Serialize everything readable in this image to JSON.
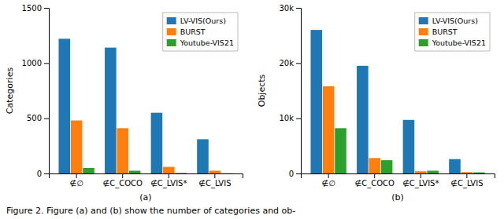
{
  "chart_data": [
    {
      "type": "bar",
      "xlabel": "(a)",
      "ylabel": "Categories",
      "categories": [
        "∉∅",
        "∉C_COCO",
        "∉C_LVIS*",
        "∉C_LVIS"
      ],
      "series": [
        {
          "name": "LV-VIS(Ours)",
          "values": [
            1220,
            1140,
            550,
            310
          ]
        },
        {
          "name": "BURST",
          "values": [
            480,
            410,
            60,
            25
          ]
        },
        {
          "name": "Youtube-VIS21",
          "values": [
            50,
            25,
            5,
            2
          ]
        }
      ],
      "ylim": [
        0,
        1500
      ],
      "yticks": [
        0,
        500,
        1000,
        1500
      ],
      "grid": false,
      "legend": "upper right",
      "annotations": [
        "Figure 2. Figure (a) and (b) show the number of categories and ob-"
      ]
    },
    {
      "type": "bar",
      "xlabel": "(b)",
      "ylabel": "Objects",
      "categories": [
        "∉∅",
        "∉C_COCO",
        "∉C_LVIS*",
        "∉C_LVIS"
      ],
      "series": [
        {
          "name": "LV-VIS(Ours)",
          "values": [
            26000,
            19500,
            9700,
            2600
          ]
        },
        {
          "name": "BURST",
          "values": [
            15800,
            2800,
            400,
            250
          ]
        },
        {
          "name": "Youtube-VIS21",
          "values": [
            8200,
            2400,
            500,
            200
          ]
        }
      ],
      "ylim": [
        0,
        30000
      ],
      "yticks": [
        0,
        {
          "value": 10000,
          "label": "10k"
        },
        {
          "value": 20000,
          "label": "20k"
        },
        {
          "value": 30000,
          "label": "30k"
        }
      ],
      "grid": false,
      "legend": "upper right"
    }
  ]
}
